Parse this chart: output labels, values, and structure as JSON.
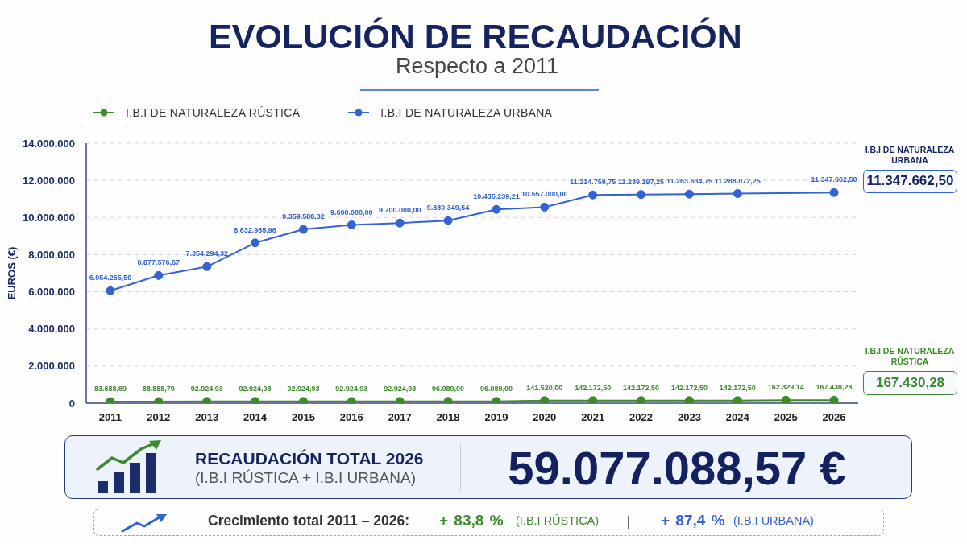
{
  "chart_data": {
    "type": "line",
    "title": "EVOLUCIÓN DE RECAUDACIÓN",
    "subtitle": "Respecto a 2011",
    "ylabel": "EUROS (€)",
    "categories": [
      "2011",
      "2012",
      "2013",
      "2014",
      "2015",
      "2016",
      "2017",
      "2018",
      "2019",
      "2020",
      "2021",
      "2022",
      "2023",
      "2024",
      "2025",
      "2026"
    ],
    "series": [
      {
        "name": "I.B.I DE NATURALEZA RÚSTICA",
        "color": "#3d8a2b",
        "values": [
          83688.69,
          88888.79,
          92924.93,
          92924.93,
          92924.93,
          92924.93,
          92924.93,
          96089.0,
          96089.0,
          141520.0,
          142172.5,
          142172.5,
          142172.5,
          142172.5,
          162329.14,
          167430.28
        ],
        "value_labels": [
          "83.688,69",
          "88.888,79",
          "92.924,93",
          "92.924,93",
          "92.924,93",
          "92.924,93",
          "92.924,93",
          "96.089,00",
          "96.089,00",
          "141.520,00",
          "142.172,50",
          "142.172,50",
          "142.172,50",
          "142.172,50",
          "162.329,14",
          "167.430,28"
        ]
      },
      {
        "name": "I.B.I DE NATURALEZA URBANA",
        "color": "#3263d1",
        "values": [
          6054265.5,
          6877576.67,
          7354294.32,
          8632985.96,
          9359588.32,
          9600000.0,
          9700000.0,
          9830349.54,
          10435239.21,
          10557000.0,
          11214759.75,
          11239197.25,
          11263634.75,
          11288072.25,
          null,
          11347662.5
        ],
        "value_labels": [
          "6.054.265,50",
          "6.877.576,67",
          "7.354.294,32",
          "8.632.985,96",
          "9.359.588,32",
          "9.600.000,00",
          "9.700.000,00",
          "9.830.349,54",
          "10.435.239,21",
          "10.557.000,00",
          "11.214.759,75",
          "11.239.197,25",
          "11.263.634,75",
          "11.288.072,25",
          null,
          "11.347.662,50"
        ]
      }
    ],
    "ylim": [
      0,
      14000000
    ],
    "yticks": [
      0,
      {
        "value": 2000000,
        "label": "2.000.000"
      },
      {
        "value": 4000000,
        "label": "4.000.000"
      },
      {
        "value": 6000000,
        "label": "6.000.000"
      },
      {
        "value": 8000000,
        "label": "8.000.000"
      },
      {
        "value": 10000000,
        "label": "10.000.000"
      },
      {
        "value": 12000000,
        "label": "12.000.000"
      },
      {
        "value": 14000000,
        "label": "14.000.000"
      }
    ],
    "grid": "y",
    "legend": "top left",
    "marker": "circle",
    "line_style": "solid",
    "annotations": [
      "RECAUDACIÓN TOTAL 2026",
      "(I.B.I RÚSTICA + I.B.I URBANA)",
      "59.077.088,57 €",
      "Crecimiento total 2011 – 2026:",
      "+ 83,8 %",
      "(I.B.I RÚSTICA)",
      "+ 87,4 %",
      "(I.B.I URBANA)",
      "I.B.I DE NATURALEZA URBANA",
      "11.347.662,50",
      "I.B.I DE NATURALEZA RÚSTICA",
      "167.430,28"
    ]
  }
}
